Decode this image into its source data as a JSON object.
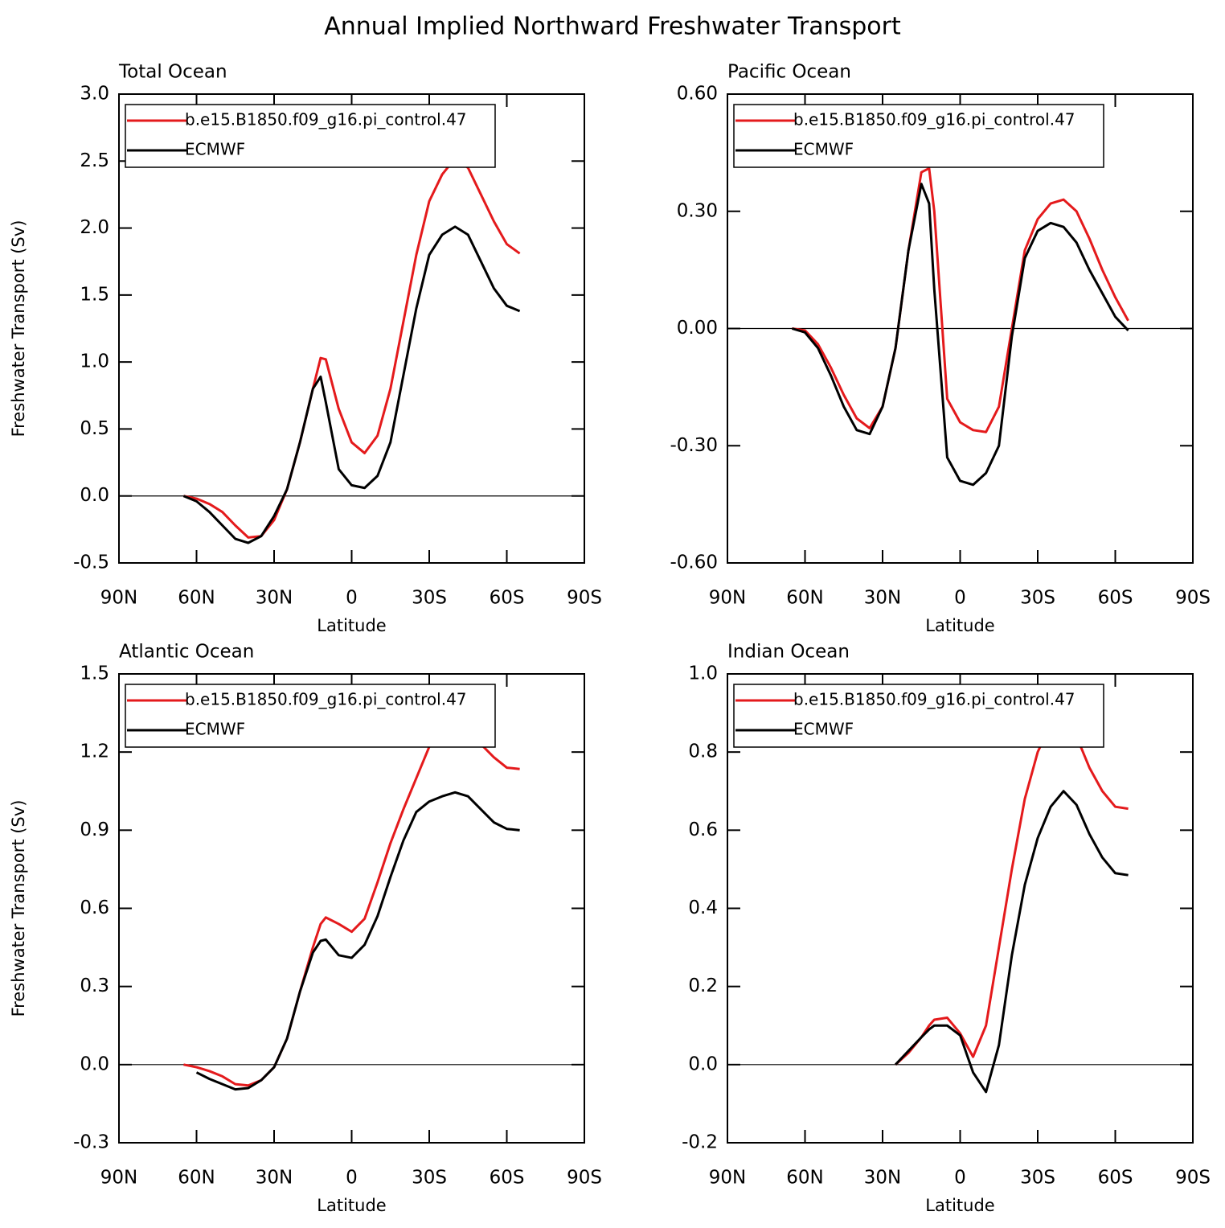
{
  "title": "Annual Implied Northward Freshwater Transport",
  "chart_data": [
    {
      "type": "line",
      "title": "Total Ocean",
      "xlabel": "Latitude",
      "ylabel": "Freshwater Transport (Sv)",
      "x": [
        65,
        60,
        55,
        50,
        45,
        40,
        35,
        30,
        25,
        20,
        15,
        12,
        10,
        5,
        0,
        -5,
        -10,
        -15,
        -20,
        -25,
        -30,
        -35,
        -40,
        -45,
        -50,
        -55,
        -60,
        -65
      ],
      "xlim": [
        90,
        -90
      ],
      "xticks": [
        {
          "value": 90,
          "label": "90N"
        },
        {
          "value": 60,
          "label": "60N"
        },
        {
          "value": 30,
          "label": "30N"
        },
        0,
        {
          "value": -30,
          "label": "30S"
        },
        {
          "value": -60,
          "label": "60S"
        },
        {
          "value": -90,
          "label": "90S"
        }
      ],
      "ylim": [
        -0.5,
        3.0
      ],
      "yticks": [
        -0.5,
        {
          "value": 0,
          "label": "0.0"
        },
        0.5,
        {
          "value": 1,
          "label": "1.0"
        },
        1.5,
        {
          "value": 2,
          "label": "2.0"
        },
        2.5,
        {
          "value": 3,
          "label": "3.0"
        }
      ],
      "series": [
        {
          "name": "b.e15.B1850.f09_g16.pi_control.47",
          "color": "#e41a1c",
          "values": [
            0,
            -0.02,
            -0.06,
            -0.12,
            -0.22,
            -0.31,
            -0.3,
            -0.18,
            0.05,
            0.4,
            0.8,
            1.03,
            1.02,
            0.65,
            0.4,
            0.32,
            0.45,
            0.8,
            1.3,
            1.8,
            2.2,
            2.4,
            2.52,
            2.45,
            2.25,
            2.05,
            1.88,
            1.81
          ]
        },
        {
          "name": "ECMWF",
          "color": "#000000",
          "values": [
            0,
            -0.04,
            -0.12,
            -0.22,
            -0.32,
            -0.35,
            -0.3,
            -0.15,
            0.05,
            0.4,
            0.8,
            0.89,
            0.7,
            0.2,
            0.08,
            0.06,
            0.15,
            0.4,
            0.9,
            1.4,
            1.8,
            1.95,
            2.01,
            1.95,
            1.75,
            1.55,
            1.42,
            1.38
          ]
        }
      ]
    },
    {
      "type": "line",
      "title": "Pacific Ocean",
      "xlabel": "Latitude",
      "x": [
        65,
        60,
        55,
        50,
        45,
        40,
        35,
        30,
        25,
        20,
        15,
        12,
        10,
        5,
        0,
        -5,
        -10,
        -15,
        -20,
        -25,
        -30,
        -35,
        -40,
        -45,
        -50,
        -55,
        -60,
        -65
      ],
      "xlim": [
        90,
        -90
      ],
      "xticks": [
        {
          "value": 90,
          "label": "90N"
        },
        {
          "value": 60,
          "label": "60N"
        },
        {
          "value": 30,
          "label": "30N"
        },
        0,
        {
          "value": -30,
          "label": "30S"
        },
        {
          "value": -60,
          "label": "60S"
        },
        {
          "value": -90,
          "label": "90S"
        }
      ],
      "ylim": [
        -0.6,
        0.6
      ],
      "yticks": [
        {
          "value": -0.6,
          "label": "-0.60"
        },
        {
          "value": -0.3,
          "label": "-0.30"
        },
        {
          "value": 0,
          "label": "0.00"
        },
        {
          "value": 0.3,
          "label": "0.30"
        },
        {
          "value": 0.6,
          "label": "0.60"
        }
      ],
      "series": [
        {
          "name": "b.e15.B1850.f09_g16.pi_control.47",
          "color": "#e41a1c",
          "values": [
            0,
            -0.005,
            -0.04,
            -0.1,
            -0.17,
            -0.23,
            -0.255,
            -0.2,
            -0.05,
            0.2,
            0.4,
            0.41,
            0.3,
            -0.18,
            -0.24,
            -0.26,
            -0.265,
            -0.2,
            0,
            0.2,
            0.28,
            0.32,
            0.33,
            0.3,
            0.23,
            0.15,
            0.08,
            0.02
          ]
        },
        {
          "name": "ECMWF",
          "color": "#000000",
          "values": [
            0,
            -0.01,
            -0.05,
            -0.12,
            -0.2,
            -0.26,
            -0.27,
            -0.2,
            -0.05,
            0.2,
            0.37,
            0.32,
            0.1,
            -0.33,
            -0.39,
            -0.4,
            -0.37,
            -0.3,
            -0.02,
            0.18,
            0.25,
            0.27,
            0.26,
            0.22,
            0.15,
            0.09,
            0.03,
            -0.005
          ]
        }
      ]
    },
    {
      "type": "line",
      "title": "Atlantic Ocean",
      "xlabel": "Latitude",
      "ylabel": "Freshwater Transport (Sv)",
      "x": [
        65,
        60,
        55,
        50,
        45,
        40,
        35,
        30,
        25,
        20,
        15,
        12,
        10,
        5,
        0,
        -5,
        -10,
        -15,
        -20,
        -25,
        -30,
        -35,
        -40,
        -45,
        -50,
        -55,
        -60,
        -65
      ],
      "xlim": [
        90,
        -90
      ],
      "xticks": [
        {
          "value": 90,
          "label": "90N"
        },
        {
          "value": 60,
          "label": "60N"
        },
        {
          "value": 30,
          "label": "30N"
        },
        0,
        {
          "value": -30,
          "label": "30S"
        },
        {
          "value": -60,
          "label": "60S"
        },
        {
          "value": -90,
          "label": "90S"
        }
      ],
      "ylim": [
        -0.3,
        1.5
      ],
      "yticks": [
        -0.3,
        {
          "value": 0,
          "label": "0.0"
        },
        0.3,
        0.6,
        0.9,
        1.2,
        1.5
      ],
      "series": [
        {
          "name": "b.e15.B1850.f09_g16.pi_control.47",
          "color": "#e41a1c",
          "values": [
            0,
            -0.01,
            -0.025,
            -0.045,
            -0.075,
            -0.08,
            -0.06,
            -0.01,
            0.1,
            0.28,
            0.45,
            0.54,
            0.565,
            0.54,
            0.51,
            0.56,
            0.7,
            0.85,
            0.98,
            1.1,
            1.22,
            1.28,
            1.31,
            1.29,
            1.23,
            1.18,
            1.14,
            1.135
          ]
        },
        {
          "name": "ECMWF",
          "color": "#000000",
          "values": [
            null,
            -0.03,
            -0.055,
            -0.075,
            -0.095,
            -0.09,
            -0.06,
            -0.01,
            0.1,
            0.28,
            0.43,
            0.475,
            0.48,
            0.42,
            0.41,
            0.46,
            0.57,
            0.72,
            0.86,
            0.97,
            1.01,
            1.03,
            1.045,
            1.03,
            0.98,
            0.93,
            0.905,
            0.9
          ]
        }
      ]
    },
    {
      "type": "line",
      "title": "Indian Ocean",
      "xlabel": "Latitude",
      "x": [
        65,
        60,
        55,
        50,
        45,
        40,
        35,
        30,
        25,
        20,
        15,
        12,
        10,
        5,
        0,
        -5,
        -10,
        -15,
        -20,
        -25,
        -30,
        -35,
        -40,
        -45,
        -50,
        -55,
        -60,
        -65
      ],
      "xlim": [
        90,
        -90
      ],
      "xticks": [
        {
          "value": 90,
          "label": "90N"
        },
        {
          "value": 60,
          "label": "60N"
        },
        {
          "value": 30,
          "label": "30N"
        },
        0,
        {
          "value": -30,
          "label": "30S"
        },
        {
          "value": -60,
          "label": "60S"
        },
        {
          "value": -90,
          "label": "90S"
        }
      ],
      "ylim": [
        -0.2,
        1.0
      ],
      "yticks": [
        -0.2,
        {
          "value": 0,
          "label": "0.0"
        },
        0.2,
        0.4,
        0.6,
        0.8,
        {
          "value": 1,
          "label": "1.0"
        }
      ],
      "series": [
        {
          "name": "b.e15.B1850.f09_g16.pi_control.47",
          "color": "#e41a1c",
          "values": [
            null,
            null,
            null,
            null,
            null,
            null,
            null,
            null,
            0,
            0.03,
            0.07,
            0.1,
            0.115,
            0.12,
            0.08,
            0.02,
            0.1,
            0.3,
            0.5,
            0.68,
            0.8,
            0.87,
            0.885,
            0.84,
            0.76,
            0.7,
            0.66,
            0.655
          ]
        },
        {
          "name": "ECMWF",
          "color": "#000000",
          "values": [
            null,
            null,
            null,
            null,
            null,
            null,
            null,
            null,
            0,
            0.035,
            0.07,
            0.09,
            0.1,
            0.1,
            0.075,
            -0.02,
            -0.07,
            0.05,
            0.28,
            0.46,
            0.58,
            0.66,
            0.7,
            0.665,
            0.59,
            0.53,
            0.49,
            0.485
          ]
        }
      ]
    }
  ]
}
